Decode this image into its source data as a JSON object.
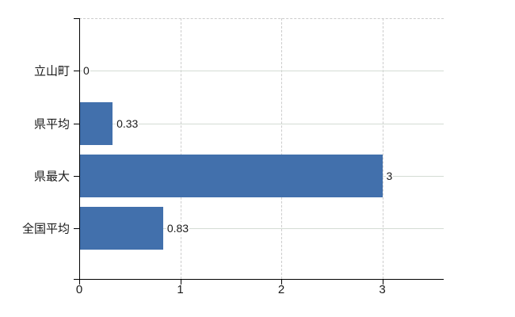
{
  "chart_data": {
    "type": "bar",
    "orientation": "horizontal",
    "title": "",
    "xlabel": "",
    "ylabel": "",
    "categories": [
      "立山町",
      "県平均",
      "県最大",
      "全国平均"
    ],
    "values": [
      0,
      0.33,
      3,
      0.83
    ],
    "value_labels": [
      "0",
      "0.33",
      "3",
      "0.83"
    ],
    "x_ticks": [
      0,
      1,
      2,
      3
    ],
    "x_tick_labels": [
      "0",
      "1",
      "2",
      "3"
    ],
    "xlim": [
      0,
      3.6
    ],
    "grid": {
      "horizontal_style": "solid",
      "vertical_style": "dashed",
      "top_border_style": "dashed"
    },
    "legend": "none",
    "colors": {
      "bar": "#4270ac",
      "horizontal_grid": "#d4dcd4",
      "vertical_grid": "#cccccc",
      "top_border": "#cccccc",
      "axis": "#000000",
      "text": "#1a1a1a"
    }
  }
}
